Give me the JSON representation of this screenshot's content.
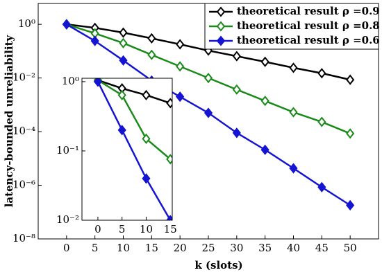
{
  "chart_data": [
    {
      "type": "line",
      "xlabel": "k (slots)",
      "ylabel": "latency-bounded unreliability",
      "log_y": true,
      "legend": "upper right",
      "x": [
        0,
        5,
        10,
        15,
        20,
        25,
        30,
        35,
        40,
        45,
        50
      ],
      "xlim": [
        -5,
        55
      ],
      "xticks": [
        0,
        5,
        10,
        15,
        20,
        25,
        30,
        35,
        40,
        45,
        50
      ],
      "ylim": [
        1e-08,
        6
      ],
      "yticks": [
        {
          "value": 1,
          "label": "10⁰"
        },
        {
          "value": 0.01,
          "label": "10⁻²"
        },
        {
          "value": 0.0001,
          "label": "10⁻⁴"
        },
        {
          "value": 1e-06,
          "label": "10⁻⁶"
        },
        {
          "value": 1e-08,
          "label": "10⁻⁸"
        }
      ],
      "series": [
        {
          "name": "theoretical result ρ =0.9",
          "color": "#000000",
          "filled": false,
          "values": [
            1,
            0.74,
            0.49,
            0.3,
            0.18,
            0.105,
            0.065,
            0.04,
            0.024,
            0.015,
            0.0086
          ]
        },
        {
          "name": "theoretical result ρ =0.8",
          "color": "#1a8a1a",
          "filled": false,
          "values": [
            1,
            0.46,
            0.2,
            0.073,
            0.027,
            0.01,
            0.0037,
            0.0014,
            0.00053,
            0.00023,
            8.5e-05
          ]
        },
        {
          "name": "theoretical result ρ =0.6",
          "color": "#1414d2",
          "filled": true,
          "values": [
            1,
            0.24,
            0.045,
            0.008,
            0.002,
            0.0005,
            9e-05,
            2.1e-05,
            4.3e-06,
            8.5e-07,
            1.8e-07
          ]
        }
      ]
    },
    {
      "type": "line",
      "log_y": true,
      "x": [
        0,
        5,
        10,
        15
      ],
      "xlim": [
        -3.3,
        15.4
      ],
      "xticks": [
        0,
        5,
        10,
        15
      ],
      "ylim": [
        0.01,
        1.12
      ],
      "yticks": [
        {
          "value": 1,
          "label": "10⁰"
        },
        {
          "value": 0.1,
          "label": "10⁻¹"
        },
        {
          "value": 0.01,
          "label": "10⁻²"
        }
      ],
      "series": [
        {
          "color": "#000000",
          "filled": false,
          "values": [
            1.05,
            0.8,
            0.64,
            0.49
          ]
        },
        {
          "color": "#1a8a1a",
          "filled": false,
          "values": [
            1.05,
            0.64,
            0.15,
            0.076
          ]
        },
        {
          "color": "#1414d2",
          "filled": true,
          "values": [
            1.0,
            0.2,
            0.04,
            0.01
          ]
        }
      ]
    }
  ]
}
